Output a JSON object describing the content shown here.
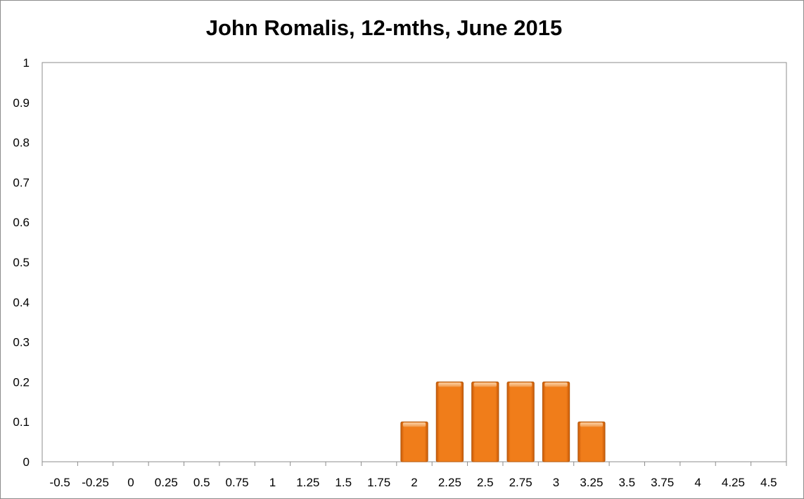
{
  "chart_data": {
    "type": "bar",
    "title": "John Romalis, 12-mths, June 2015",
    "xlabel": "",
    "ylabel": "",
    "categories": [
      "-0.5",
      "-0.25",
      "0",
      "0.25",
      "0.5",
      "0.75",
      "1",
      "1.25",
      "1.5",
      "1.75",
      "2",
      "2.25",
      "2.5",
      "2.75",
      "3",
      "3.25",
      "3.5",
      "3.75",
      "4",
      "4.25",
      "4.5"
    ],
    "values": [
      0,
      0,
      0,
      0,
      0,
      0,
      0,
      0,
      0,
      0,
      0.1,
      0.2,
      0.2,
      0.2,
      0.2,
      0.1,
      0,
      0,
      0,
      0,
      0
    ],
    "ylim": [
      0,
      1
    ],
    "yticks": [
      "0",
      "0.1",
      "0.2",
      "0.3",
      "0.4",
      "0.5",
      "0.6",
      "0.7",
      "0.8",
      "0.9",
      "1"
    ],
    "grid": false,
    "legend": "none",
    "bar_color": "#f07d1a"
  }
}
